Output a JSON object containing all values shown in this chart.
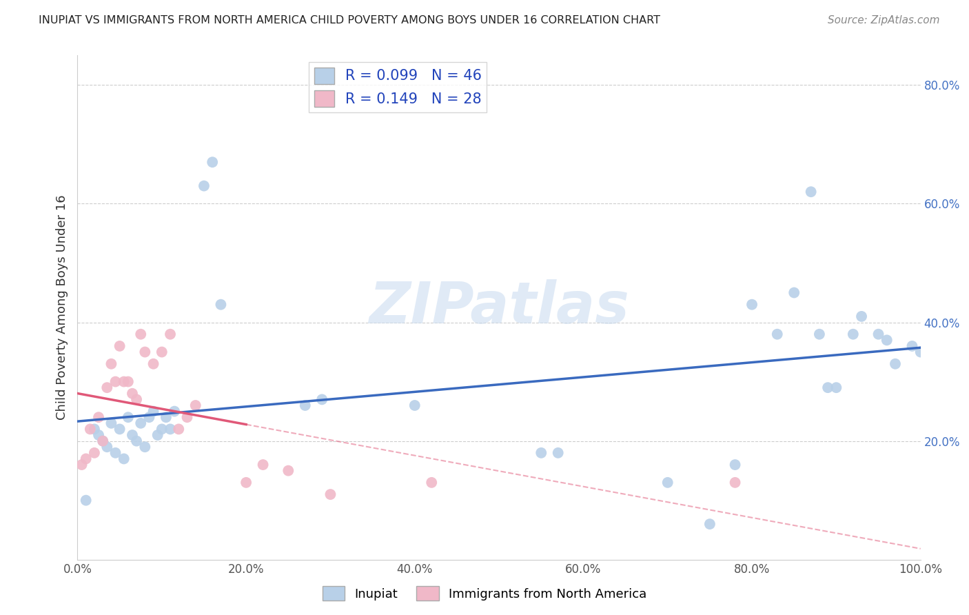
{
  "title": "INUPIAT VS IMMIGRANTS FROM NORTH AMERICA CHILD POVERTY AMONG BOYS UNDER 16 CORRELATION CHART",
  "source": "Source: ZipAtlas.com",
  "xlabel": "",
  "ylabel": "Child Poverty Among Boys Under 16",
  "legend_bottom": [
    "Inupiat",
    "Immigrants from North America"
  ],
  "R_inupiat": 0.099,
  "N_inupiat": 46,
  "R_immigrants": 0.149,
  "N_immigrants": 28,
  "inupiat_color": "#b8d0e8",
  "immigrant_color": "#f0b8c8",
  "inupiat_line_color": "#3a6abf",
  "immigrant_line_color": "#e05878",
  "inupiat_x": [
    1.0,
    2.0,
    2.5,
    3.0,
    3.5,
    4.0,
    4.5,
    5.0,
    5.5,
    6.0,
    6.5,
    7.0,
    7.5,
    8.0,
    8.5,
    9.0,
    9.5,
    10.0,
    10.5,
    11.0,
    11.5,
    15.0,
    16.0,
    17.0,
    27.0,
    29.0,
    40.0,
    55.0,
    57.0,
    70.0,
    75.0,
    78.0,
    80.0,
    83.0,
    85.0,
    87.0,
    88.0,
    89.0,
    90.0,
    92.0,
    93.0,
    95.0,
    96.0,
    97.0,
    99.0,
    100.0
  ],
  "inupiat_y": [
    10.0,
    22.0,
    21.0,
    20.0,
    19.0,
    23.0,
    18.0,
    22.0,
    17.0,
    24.0,
    21.0,
    20.0,
    23.0,
    19.0,
    24.0,
    25.0,
    21.0,
    22.0,
    24.0,
    22.0,
    25.0,
    63.0,
    67.0,
    43.0,
    26.0,
    27.0,
    26.0,
    18.0,
    18.0,
    13.0,
    6.0,
    16.0,
    43.0,
    38.0,
    45.0,
    62.0,
    38.0,
    29.0,
    29.0,
    38.0,
    41.0,
    38.0,
    37.0,
    33.0,
    36.0,
    35.0
  ],
  "immigrant_x": [
    0.5,
    1.0,
    1.5,
    2.0,
    2.5,
    3.0,
    3.5,
    4.0,
    4.5,
    5.0,
    5.5,
    6.0,
    6.5,
    7.0,
    7.5,
    8.0,
    9.0,
    10.0,
    11.0,
    12.0,
    13.0,
    14.0,
    20.0,
    22.0,
    25.0,
    30.0,
    42.0,
    78.0
  ],
  "immigrant_y": [
    16.0,
    17.0,
    22.0,
    18.0,
    24.0,
    20.0,
    29.0,
    33.0,
    30.0,
    36.0,
    30.0,
    30.0,
    28.0,
    27.0,
    38.0,
    35.0,
    33.0,
    35.0,
    38.0,
    22.0,
    24.0,
    26.0,
    13.0,
    16.0,
    15.0,
    11.0,
    13.0,
    13.0
  ],
  "watermark_text": "ZIPatlas",
  "xlim": [
    0,
    100
  ],
  "ylim": [
    0,
    85
  ],
  "xticks": [
    0,
    20,
    40,
    60,
    80,
    100
  ],
  "xtick_labels": [
    "0.0%",
    "20.0%",
    "40.0%",
    "60.0%",
    "80.0%",
    "100.0%"
  ],
  "yticks": [
    20,
    40,
    60,
    80
  ],
  "ytick_labels": [
    "20.0%",
    "40.0%",
    "60.0%",
    "80.0%"
  ],
  "title_color": "#222222",
  "source_color": "#888888",
  "background_color": "#ffffff",
  "grid_color": "#cccccc",
  "marker_size": 130,
  "figsize": [
    14.06,
    8.92
  ],
  "dpi": 100
}
